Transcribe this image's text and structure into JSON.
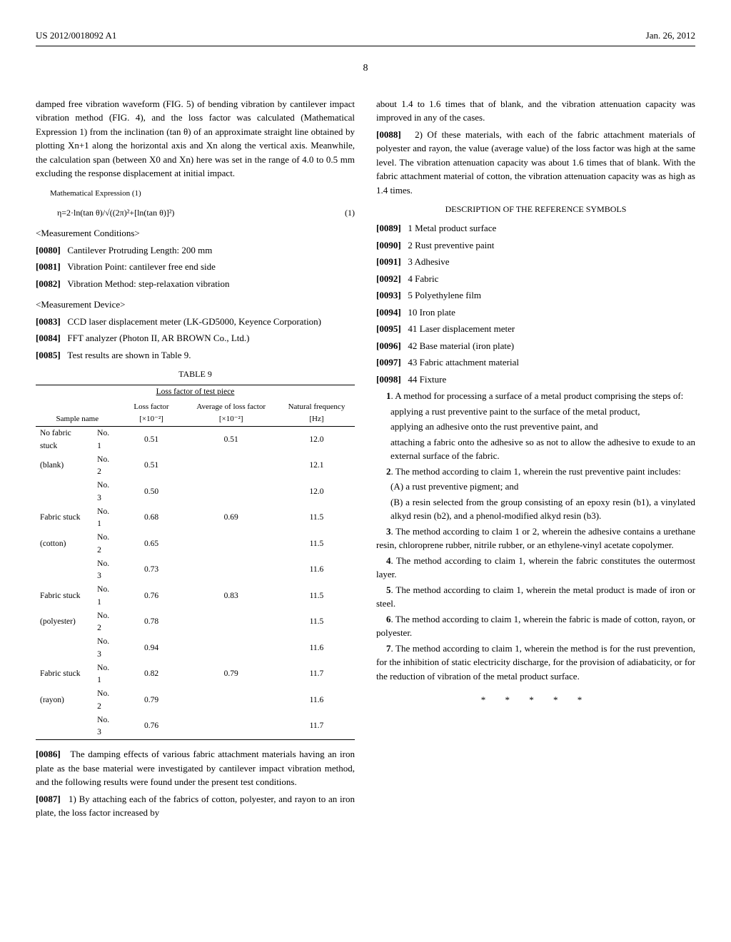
{
  "header": {
    "left": "US 2012/0018092 A1",
    "right": "Jan. 26, 2012"
  },
  "page_number": "8",
  "left_col": {
    "para1": "damped free vibration waveform (FIG. 5) of bending vibration by cantilever impact vibration method (FIG. 4), and the loss factor was calculated (Mathematical Expression 1) from the inclination (tan θ) of an approximate straight line obtained by plotting Xn+1 along the horizontal axis and Xn along the vertical axis. Meanwhile, the calculation span (between X0 and Xn) here was set in the range of 4.0 to 0.5 mm excluding the response displacement at initial impact.",
    "math_label": "Mathematical Expression (1)",
    "math_formula": "η=2·ln(tan θ)/√((2π)²+[ln(tan θ)]²)",
    "math_eqnum": "(1)",
    "sec1": "<Measurement Conditions>",
    "p0080_num": "[0080]",
    "p0080": "Cantilever Protruding Length: 200 mm",
    "p0081_num": "[0081]",
    "p0081": "Vibration Point: cantilever free end side",
    "p0082_num": "[0082]",
    "p0082": "Vibration Method: step-relaxation vibration",
    "sec2": "<Measurement Device>",
    "p0083_num": "[0083]",
    "p0083": "CCD laser displacement meter (LK-GD5000, Keyence Corporation)",
    "p0084_num": "[0084]",
    "p0084": "FFT analyzer (Photon II, AR BROWN Co., Ltd.)",
    "p0085_num": "[0085]",
    "p0085": "Test results are shown in Table 9.",
    "table": {
      "title": "TABLE 9",
      "subtitle": "Loss factor of test piece",
      "headers": [
        "Sample name",
        "",
        "Loss factor [×10⁻²]",
        "Average of loss factor [×10⁻²]",
        "Natural frequency [Hz]"
      ],
      "rows": [
        [
          "No fabric stuck",
          "No. 1",
          "0.51",
          "0.51",
          "12.0"
        ],
        [
          "(blank)",
          "No. 2",
          "0.51",
          "",
          "12.1"
        ],
        [
          "",
          "No. 3",
          "0.50",
          "",
          "12.0"
        ],
        [
          "Fabric stuck",
          "No. 1",
          "0.68",
          "0.69",
          "11.5"
        ],
        [
          "(cotton)",
          "No. 2",
          "0.65",
          "",
          "11.5"
        ],
        [
          "",
          "No. 3",
          "0.73",
          "",
          "11.6"
        ],
        [
          "Fabric stuck",
          "No. 1",
          "0.76",
          "0.83",
          "11.5"
        ],
        [
          "(polyester)",
          "No. 2",
          "0.78",
          "",
          "11.5"
        ],
        [
          "",
          "No. 3",
          "0.94",
          "",
          "11.6"
        ],
        [
          "Fabric stuck",
          "No. 1",
          "0.82",
          "0.79",
          "11.7"
        ],
        [
          "(rayon)",
          "No. 2",
          "0.79",
          "",
          "11.6"
        ],
        [
          "",
          "No. 3",
          "0.76",
          "",
          "11.7"
        ]
      ]
    },
    "p0086_num": "[0086]",
    "p0086": "The damping effects of various fabric attachment materials having an iron plate as the base material were investigated by cantilever impact vibration method, and the following results were found under the present test conditions.",
    "p0087_num": "[0087]",
    "p0087": "1) By attaching each of the fabrics of cotton, polyester, and rayon to an iron plate, the loss factor increased by"
  },
  "right_col": {
    "cont": "about 1.4 to 1.6 times that of blank, and the vibration attenuation capacity was improved in any of the cases.",
    "p0088_num": "[0088]",
    "p0088": "2) Of these materials, with each of the fabric attachment materials of polyester and rayon, the value (average value) of the loss factor was high at the same level. The vibration attenuation capacity was about 1.6 times that of blank. With the fabric attachment material of cotton, the vibration attenuation capacity was as high as 1.4 times.",
    "refs_title": "DESCRIPTION OF THE REFERENCE SYMBOLS",
    "refs": [
      {
        "num": "[0089]",
        "text": "1 Metal product surface"
      },
      {
        "num": "[0090]",
        "text": "2 Rust preventive paint"
      },
      {
        "num": "[0091]",
        "text": "3 Adhesive"
      },
      {
        "num": "[0092]",
        "text": "4 Fabric"
      },
      {
        "num": "[0093]",
        "text": "5 Polyethylene film"
      },
      {
        "num": "[0094]",
        "text": "10 Iron plate"
      },
      {
        "num": "[0095]",
        "text": "41 Laser displacement meter"
      },
      {
        "num": "[0096]",
        "text": "42 Base material (iron plate)"
      },
      {
        "num": "[0097]",
        "text": "43 Fabric attachment material"
      },
      {
        "num": "[0098]",
        "text": "44 Fixture"
      }
    ],
    "claims": [
      {
        "lead": "1",
        "text": ". A method for processing a surface of a metal product comprising the steps of:"
      },
      {
        "sub": true,
        "text": "applying a rust preventive paint to the surface of the metal product,"
      },
      {
        "sub": true,
        "text": "applying an adhesive onto the rust preventive paint, and"
      },
      {
        "sub": true,
        "text": "attaching a fabric onto the adhesive so as not to allow the adhesive to exude to an external surface of the fabric."
      },
      {
        "lead": "2",
        "text": ". The method according to claim 1, wherein the rust preventive paint includes:"
      },
      {
        "sub": true,
        "text": "(A) a rust preventive pigment; and"
      },
      {
        "sub": true,
        "text": "(B) a resin selected from the group consisting of an epoxy resin (b1), a vinylated alkyd resin (b2), and a phenol-modified alkyd resin (b3)."
      },
      {
        "lead": "3",
        "text": ". The method according to claim 1 or 2, wherein the adhesive contains a urethane resin, chloroprene rubber, nitrile rubber, or an ethylene-vinyl acetate copolymer."
      },
      {
        "lead": "4",
        "text": ". The method according to claim 1, wherein the fabric constitutes the outermost layer."
      },
      {
        "lead": "5",
        "text": ". The method according to claim 1, wherein the metal product is made of iron or steel."
      },
      {
        "lead": "6",
        "text": ". The method according to claim 1, wherein the fabric is made of cotton, rayon, or polyester."
      },
      {
        "lead": "7",
        "text": ". The method according to claim 1, wherein the method is for the rust prevention, for the inhibition of static electricity discharge, for the provision of adiabaticity, or for the reduction of vibration of the metal product surface."
      }
    ],
    "stars": "* * * * *"
  }
}
